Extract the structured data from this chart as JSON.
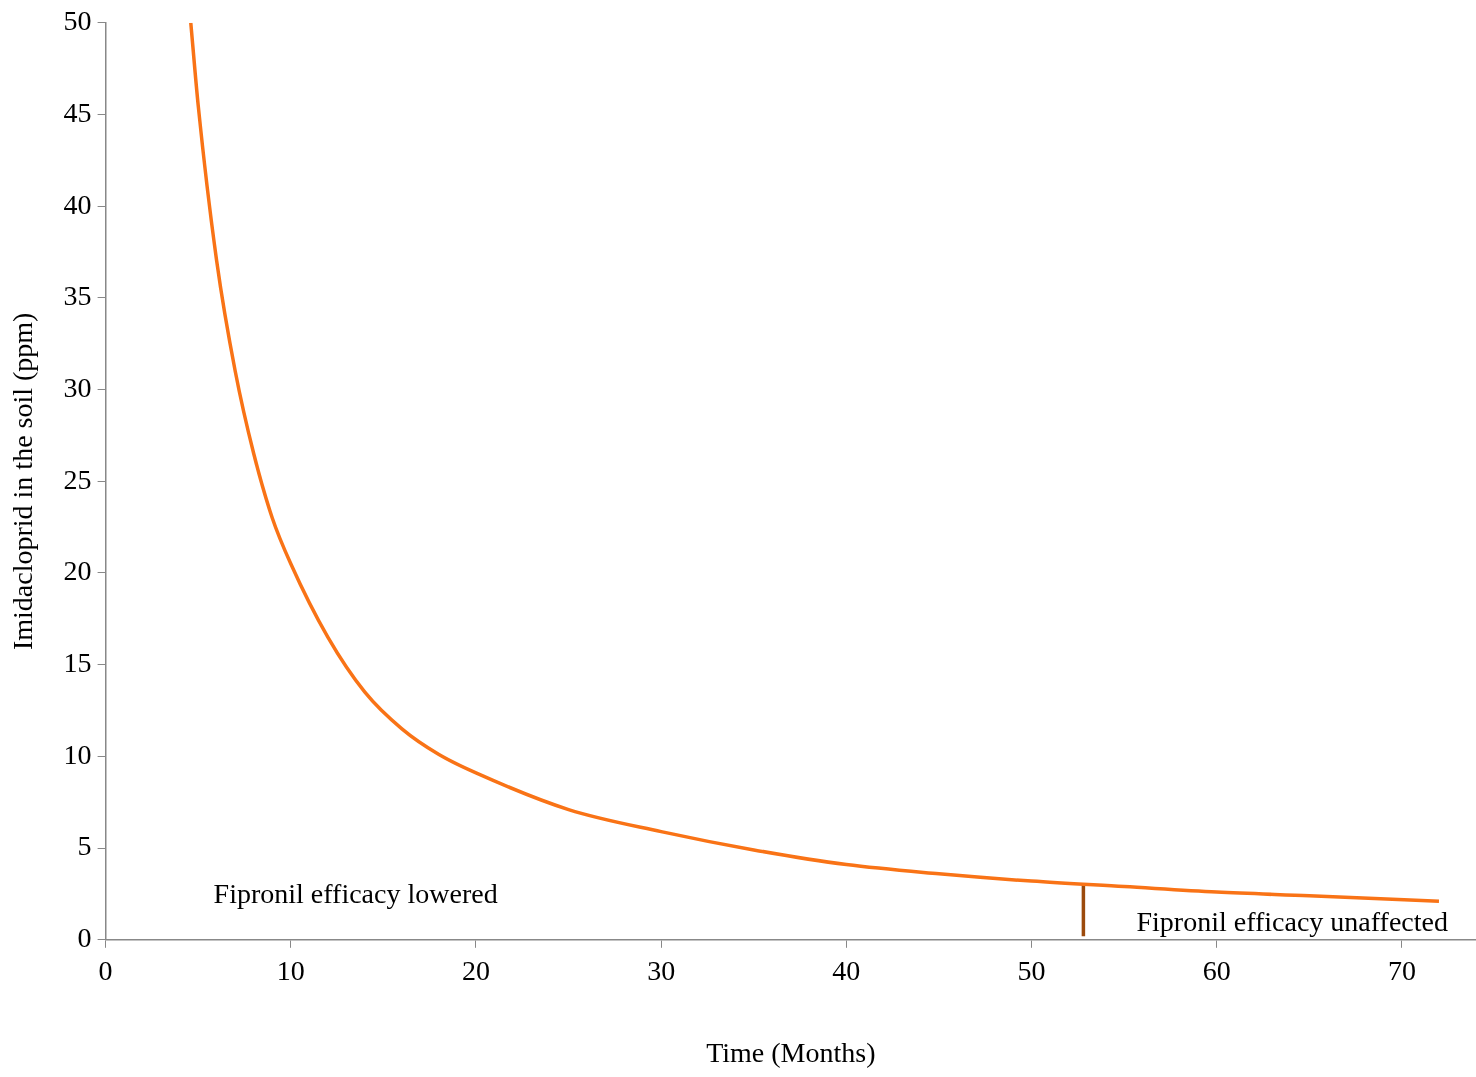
{
  "chart_data": {
    "type": "line",
    "xlabel": "Time (Months)",
    "ylabel": "Imidacloprid in the soil (ppm)",
    "xlim": [
      0,
      74
    ],
    "xticks": [
      0,
      10,
      20,
      30,
      40,
      50,
      60,
      70
    ],
    "ylim": [
      0,
      50
    ],
    "yticks": [
      0,
      5,
      10,
      15,
      20,
      25,
      30,
      35,
      40,
      45,
      50
    ],
    "marker": "none",
    "line_style": "solid",
    "series": [
      {
        "color": "#f97316",
        "x": [
          4.6,
          5,
          6,
          7,
          8,
          9,
          10,
          12,
          14,
          16,
          18,
          20,
          25,
          30,
          35,
          40,
          45,
          50,
          55,
          60,
          65,
          72
        ],
        "values": [
          50,
          45.5,
          37,
          31,
          26.5,
          23,
          20.5,
          16.5,
          13.5,
          11.5,
          10.1,
          9.1,
          7.1,
          5.9,
          4.9,
          4.1,
          3.6,
          3.2,
          2.9,
          2.6,
          2.4,
          2.1
        ]
      },
      {
        "color": "#9c4a0c",
        "x": [
          52.8,
          52.8
        ],
        "values": [
          0.2,
          3.0
        ]
      }
    ],
    "annotations": [
      "Fipronil efficacy lowered",
      "Fipronil efficacy unaffected"
    ]
  }
}
